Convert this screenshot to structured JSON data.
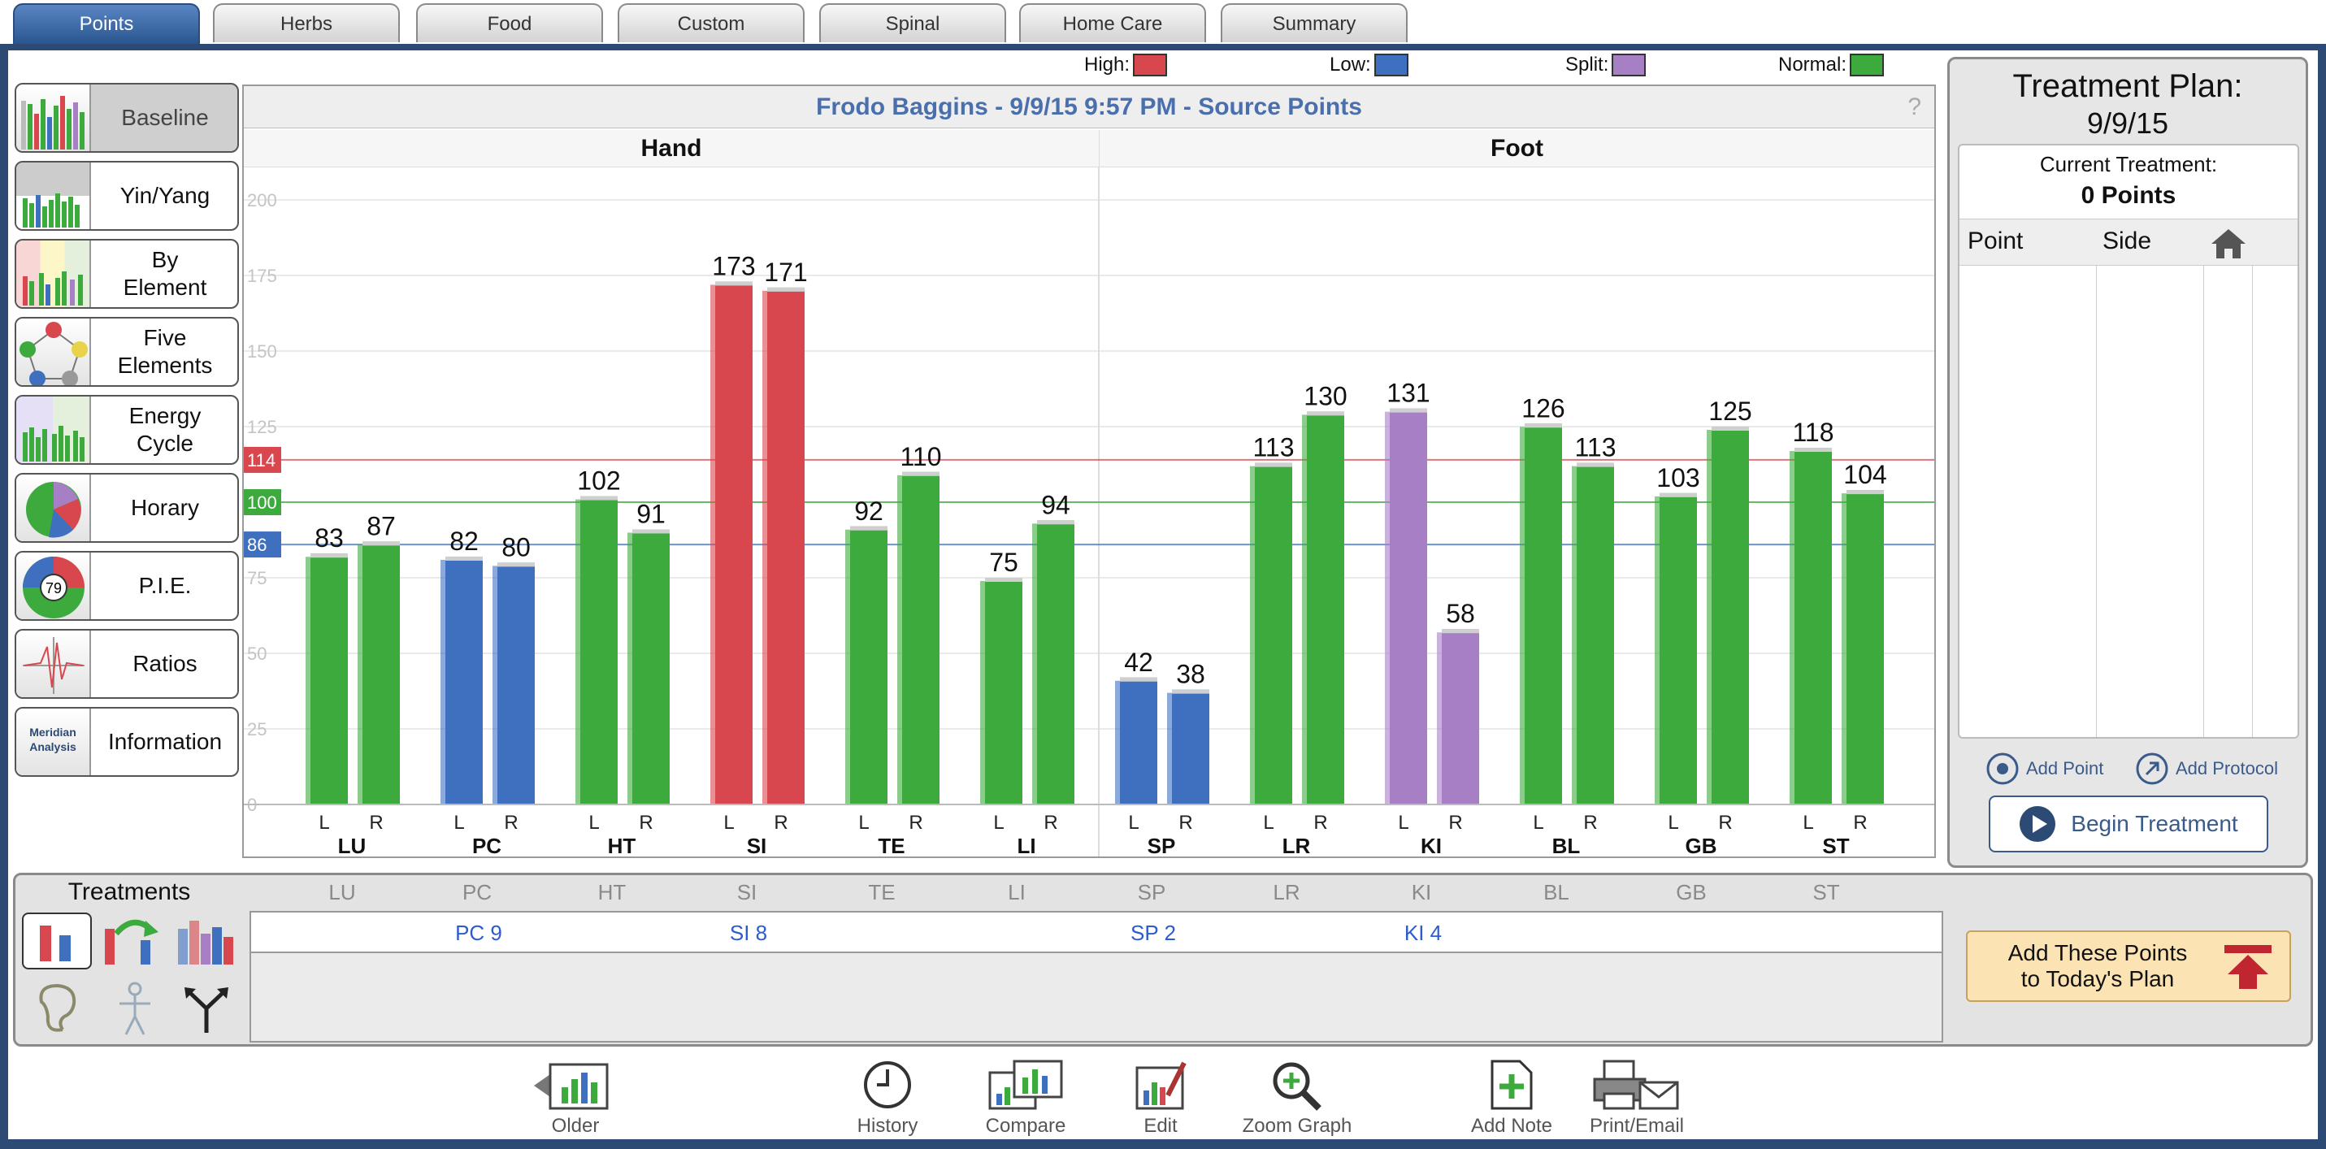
{
  "tabs": [
    {
      "label": "Points",
      "active": true
    },
    {
      "label": "Herbs"
    },
    {
      "label": "Food"
    },
    {
      "label": "Custom"
    },
    {
      "label": "Spinal"
    },
    {
      "label": "Home Care"
    },
    {
      "label": "Summary"
    }
  ],
  "sidebar": {
    "items": [
      {
        "label": "Baseline",
        "icon": "bar-chart-icon",
        "selected": true
      },
      {
        "label": "Yin/Yang",
        "icon": "yin-yang-chart-icon"
      },
      {
        "label": "By\nElement",
        "icon": "element-chart-icon"
      },
      {
        "label": "Five\nElements",
        "icon": "five-elements-icon"
      },
      {
        "label": "Energy\nCycle",
        "icon": "energy-cycle-icon"
      },
      {
        "label": "Horary",
        "icon": "horary-pie-icon"
      },
      {
        "label": "P.I.E.",
        "icon": "pie-wheel-icon",
        "badge": "79"
      },
      {
        "label": "Ratios",
        "icon": "ratios-graph-icon"
      },
      {
        "label": "Information",
        "icon": "meridian-analysis-icon",
        "thumb_text": "Meridian\nAnalysis"
      }
    ]
  },
  "legend": [
    {
      "label": "High:",
      "color": "#d9474e"
    },
    {
      "label": "Low:",
      "color": "#3f6fbf"
    },
    {
      "label": "Split:",
      "color": "#a77fc4"
    },
    {
      "label": "Normal:",
      "color": "#3daa3d"
    }
  ],
  "chart_data": {
    "type": "bar",
    "title": "Frodo Baggins - 9/9/15 9:57 PM - Source Points",
    "help": "?",
    "groups": [
      {
        "label": "Hand"
      },
      {
        "label": "Foot"
      }
    ],
    "ylim": [
      0,
      200
    ],
    "yticks": [
      0,
      25,
      50,
      75,
      100,
      125,
      150,
      175,
      200
    ],
    "reference_lines": [
      {
        "label": "114",
        "value": 114,
        "color": "#d9474e"
      },
      {
        "label": "100",
        "value": 100,
        "color": "#3daa3d"
      },
      {
        "label": "86",
        "value": 86,
        "color": "#3f6fbf"
      }
    ],
    "categories": [
      "LU",
      "PC",
      "HT",
      "SI",
      "TE",
      "LI",
      "SP",
      "LR",
      "KI",
      "BL",
      "GB",
      "ST"
    ],
    "side_labels": [
      "L",
      "R"
    ],
    "series": [
      {
        "name": "L",
        "values": [
          83,
          82,
          102,
          173,
          92,
          75,
          42,
          113,
          131,
          126,
          103,
          118
        ],
        "status": [
          "normal",
          "low",
          "normal",
          "high",
          "normal",
          "normal",
          "low",
          "normal",
          "split",
          "normal",
          "normal",
          "normal"
        ]
      },
      {
        "name": "R",
        "values": [
          87,
          80,
          91,
          171,
          110,
          94,
          38,
          130,
          58,
          113,
          125,
          104
        ],
        "status": [
          "normal",
          "low",
          "normal",
          "high",
          "normal",
          "normal",
          "low",
          "normal",
          "split",
          "normal",
          "normal",
          "normal"
        ]
      }
    ],
    "colors": {
      "high": "#d9474e",
      "low": "#3f6fbf",
      "split": "#a77fc4",
      "normal": "#3daa3d"
    }
  },
  "treatment_plan": {
    "title": "Treatment Plan:",
    "date": "9/9/15",
    "current_label": "Current Treatment:",
    "points_count": "0 Points",
    "columns": [
      "Point",
      "Side"
    ],
    "add_point": "Add Point",
    "add_protocol": "Add Protocol",
    "begin": "Begin Treatment"
  },
  "treatments": {
    "title": "Treatments",
    "columns": [
      "LU",
      "PC",
      "HT",
      "SI",
      "TE",
      "LI",
      "SP",
      "LR",
      "KI",
      "BL",
      "GB",
      "ST"
    ],
    "row": [
      "",
      "PC 9",
      "",
      "SI 8",
      "",
      "",
      "SP 2",
      "",
      "KI 4",
      "",
      "",
      ""
    ],
    "add_button": "Add These Points\nto Today's Plan"
  },
  "bottom_toolbar": [
    {
      "label": "Older",
      "icon": "older-chart-icon"
    },
    {
      "label": "History",
      "icon": "clock-icon"
    },
    {
      "label": "Compare",
      "icon": "compare-charts-icon"
    },
    {
      "label": "Edit",
      "icon": "edit-chart-icon"
    },
    {
      "label": "Zoom Graph",
      "icon": "zoom-icon"
    },
    {
      "label": "Add Note",
      "icon": "add-note-icon"
    },
    {
      "label": "Print/Email",
      "icon": "print-email-icon"
    }
  ]
}
